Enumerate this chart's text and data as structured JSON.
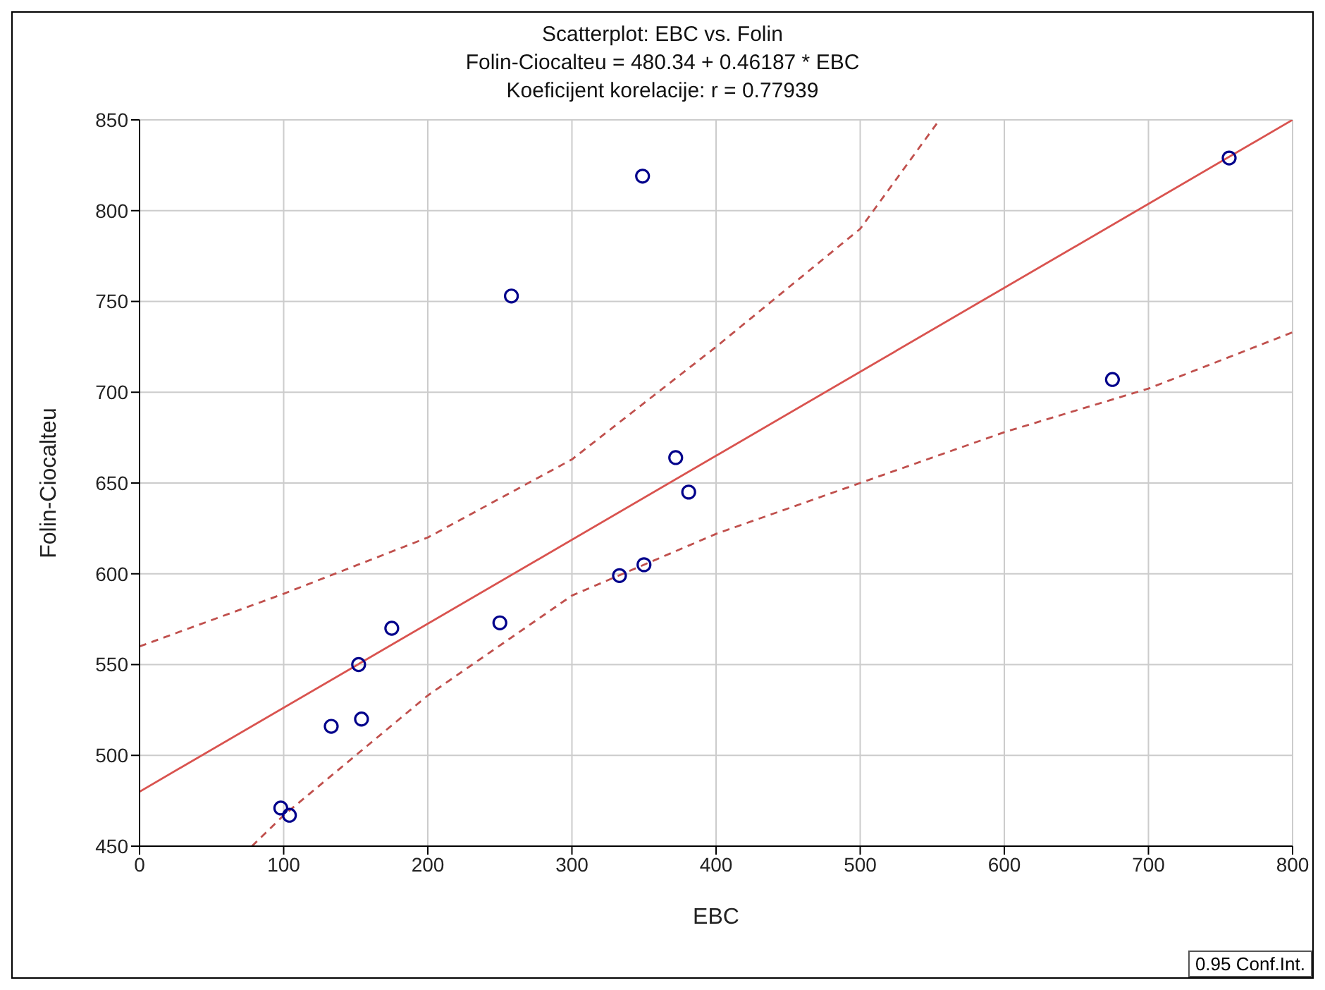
{
  "chart_data": {
    "type": "scatter",
    "title": "Scatterplot: EBC vs. Folin",
    "subtitle": "Folin-Ciocalteu = 480.34 + 0.46187 * EBC",
    "xlabel": "EBC",
    "ylabel": "Folin-Ciocalteu",
    "annotations": [
      "Koeficijent korelacije: r = 0.77939",
      "0.95 Conf.Int."
    ],
    "xlim": [
      0,
      800
    ],
    "xticks": [
      0,
      100,
      200,
      300,
      400,
      500,
      600,
      700,
      800
    ],
    "ylim": [
      450,
      850
    ],
    "yticks": [
      450,
      500,
      550,
      600,
      650,
      700,
      750,
      800,
      850
    ],
    "grid": true,
    "marker": "circle",
    "series": [
      {
        "color": "#00008b",
        "x": [
          98,
          104,
          133,
          152,
          154,
          175,
          250,
          258,
          333,
          349,
          350,
          372,
          381,
          675,
          756
        ],
        "values": [
          471,
          467,
          516,
          550,
          520,
          570,
          573,
          753,
          599,
          819,
          605,
          664,
          645,
          707,
          829
        ]
      },
      {
        "type": "line",
        "color": "#d9534f",
        "line_style": "solid",
        "marker": "none",
        "x": [
          0,
          800
        ],
        "values": [
          480,
          850
        ]
      },
      {
        "type": "line",
        "color": "#c0504d",
        "line_style": "dashed",
        "marker": "none",
        "x": [
          0,
          100,
          200,
          300,
          400,
          500,
          555
        ],
        "values": [
          560,
          589,
          620,
          663,
          725,
          790,
          850
        ]
      },
      {
        "type": "line",
        "color": "#c0504d",
        "line_style": "dashed",
        "marker": "none",
        "x": [
          78,
          100,
          200,
          300,
          400,
          500,
          600,
          700,
          800
        ],
        "values": [
          450,
          467,
          533,
          588,
          622,
          650,
          678,
          702,
          733
        ]
      }
    ]
  }
}
